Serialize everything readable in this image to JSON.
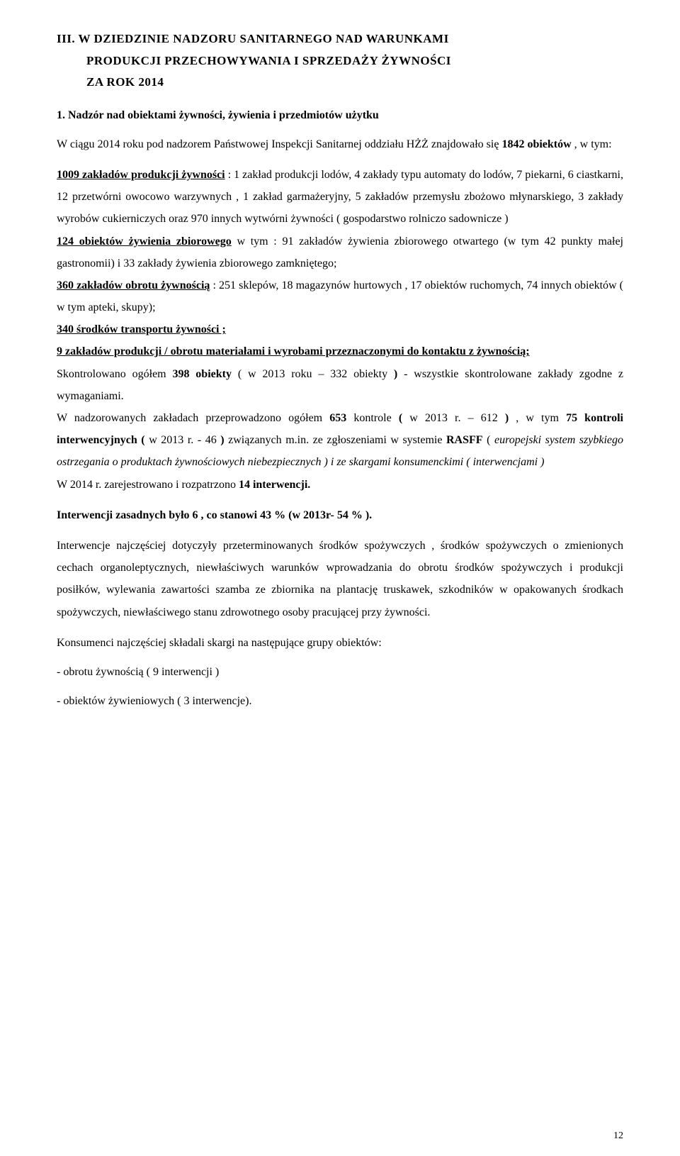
{
  "heading": {
    "line1": "III. W DZIEDZINIE NADZORU SANITARNEGO NAD WARUNKAMI",
    "line2": "PRODUKCJI PRZECHOWYWANIA I SPRZEDAŻY ŻYWNOŚCI",
    "line3": "ZA ROK 2014"
  },
  "subheading": "1.  Nadzór nad obiektami żywności, żywienia i przedmiotów użytku",
  "p1": {
    "t1": "W ciągu 2014 roku pod nadzorem Państwowej Inspekcji Sanitarnej oddziału HŻŻ znajdowało się ",
    "t2": "1842 obiektów",
    "t3": " , w tym:"
  },
  "p2": {
    "t1": " 1009 zakładów produkcji żywności",
    "t2": " : 1 zakład produkcji lodów, 4 zakłady typu automaty do lodów, 7 piekarni, 6 ciastkarni, 12 przetwórni owocowo warzywnych , 1 zakład garmażeryjny, 5 zakładów przemysłu zbożowo młynarskiego, 3 zakłady wyrobów cukierniczych oraz 970 innych wytwórni żywności ( gospodarstwo rolniczo sadownicze )"
  },
  "p3": {
    "t1": " 124 obiektów żywienia zbiorowego",
    "t2": " w tym : 91 zakładów żywienia zbiorowego otwartego (w tym 42 punkty małej gastronomii) i 33 zakłady żywienia zbiorowego zamkniętego;"
  },
  "p4": {
    "t1": "  360 zakładów obrotu żywnością",
    "t2": " : 251 sklepów, 18 magazynów hurtowych , 17 obiektów ruchomych, 74 innych obiektów ( w tym apteki, skupy);"
  },
  "p5": " 340   środków transportu żywności ;",
  "p6": {
    "t1": "  9   zakładów produkcji / obrotu  materiałami i wyrobami przeznaczonymi do kontaktu z żywnością;"
  },
  "p7": {
    "t1": "Skontrolowano ogółem ",
    "t2": "398 obiekty",
    "t3": " ( w 2013 roku – 332 obiekty ",
    "t4": ")",
    "t5": " - wszystkie skontrolowane zakłady zgodne z wymaganiami."
  },
  "p8": {
    "t1": " W nadzorowanych zakładach przeprowadzono ogółem ",
    "t2": "653",
    "t3": " kontrole ",
    "t4": "(",
    "t5": " w 2013 r. – 612 ",
    "t6": ")",
    "t7": " , w tym ",
    "t8": "75 kontroli interwencyjnych (",
    "t9": " w 2013 r. - 46 ",
    "t10": ")",
    "t11": " związanych m.in. ze zgłoszeniami w systemie ",
    "t12": "RASFF",
    "t13": " ( ",
    "t14": "europejski system szybkiego ostrzegania o produktach żywnościowych niebezpiecznych )   i ze skargami konsumenckimi ( interwencjami )"
  },
  "p9": {
    "t1": "W 2014 r. zarejestrowano i rozpatrzono ",
    "t2": "14 interwencji."
  },
  "p10": "Interwencji zasadnych było 6 , co stanowi 43 % (w 2013r-  54 % ).",
  "p11": "Interwencje najczęściej dotyczyły przeterminowanych środków spożywczych , środków spożywczych o zmienionych cechach organoleptycznych, niewłaściwych warunków wprowadzania do obrotu środków spożywczych i produkcji posiłków, wylewania zawartości szamba ze zbiornika na plantację truskawek, szkodników w opakowanych środkach spożywczych, niewłaściwego stanu zdrowotnego osoby pracującej przy żywności.",
  "p12": "Konsumenci najczęściej składali skargi na następujące grupy obiektów:",
  "li1": "-  obrotu żywnością ( 9 interwencji )",
  "li2": "-  obiektów żywieniowych ( 3 interwencje).",
  "pagenum": "12"
}
